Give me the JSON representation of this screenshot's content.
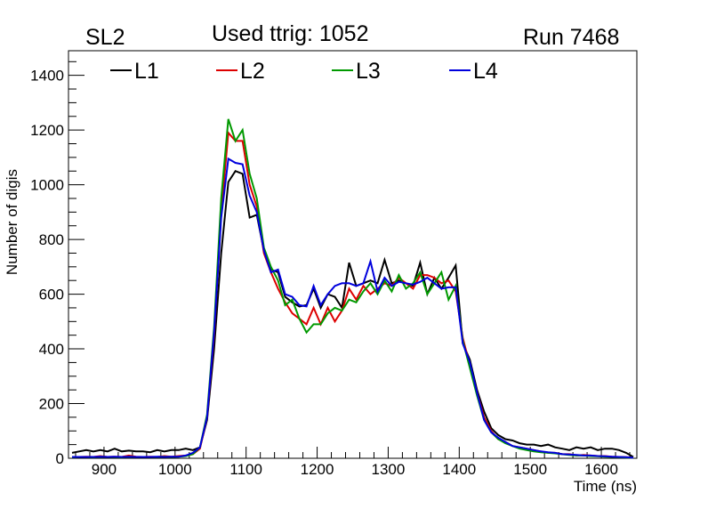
{
  "header": {
    "left": "SL2",
    "center": "Used ttrig: 1052",
    "right": "Run 7468"
  },
  "chart_data": {
    "type": "line",
    "title": "Used ttrig: 1052",
    "xlabel": "Time (ns)",
    "ylabel": "Number of digis",
    "xlim": [
      850,
      1650
    ],
    "ylim": [
      0,
      1490
    ],
    "xticks": [
      900,
      1000,
      1100,
      1200,
      1300,
      1400,
      1500,
      1600
    ],
    "yticks": [
      0,
      200,
      400,
      600,
      800,
      1000,
      1200,
      1400
    ],
    "legend_position": "top",
    "x": [
      855,
      865,
      875,
      885,
      895,
      905,
      915,
      925,
      935,
      945,
      955,
      965,
      975,
      985,
      995,
      1005,
      1015,
      1025,
      1035,
      1045,
      1055,
      1065,
      1075,
      1085,
      1095,
      1105,
      1115,
      1125,
      1135,
      1145,
      1155,
      1165,
      1175,
      1185,
      1195,
      1205,
      1215,
      1225,
      1235,
      1245,
      1255,
      1265,
      1275,
      1285,
      1295,
      1305,
      1315,
      1325,
      1335,
      1345,
      1355,
      1365,
      1375,
      1385,
      1395,
      1405,
      1415,
      1425,
      1435,
      1445,
      1455,
      1465,
      1475,
      1485,
      1495,
      1505,
      1515,
      1525,
      1535,
      1545,
      1555,
      1565,
      1575,
      1585,
      1595,
      1605,
      1615,
      1625,
      1635,
      1645
    ],
    "series": [
      {
        "name": "L1",
        "color": "#000000",
        "values": [
          20,
          25,
          30,
          25,
          30,
          25,
          35,
          25,
          28,
          25,
          25,
          22,
          30,
          25,
          30,
          30,
          35,
          30,
          40,
          140,
          400,
          750,
          1010,
          1050,
          1040,
          880,
          890,
          760,
          690,
          680,
          590,
          570,
          555,
          560,
          620,
          550,
          600,
          590,
          550,
          715,
          630,
          640,
          650,
          640,
          725,
          640,
          650,
          640,
          630,
          715,
          600,
          660,
          620,
          660,
          705,
          420,
          360,
          250,
          170,
          110,
          85,
          70,
          65,
          55,
          50,
          50,
          45,
          50,
          40,
          35,
          30,
          40,
          35,
          40,
          30,
          35,
          35,
          30,
          20,
          5
        ]
      },
      {
        "name": "L2",
        "color": "#dd0000",
        "values": [
          5,
          5,
          6,
          5,
          8,
          5,
          6,
          5,
          10,
          6,
          5,
          6,
          5,
          8,
          6,
          8,
          10,
          15,
          35,
          150,
          450,
          900,
          1190,
          1160,
          1160,
          1000,
          920,
          750,
          680,
          620,
          570,
          530,
          510,
          490,
          550,
          490,
          550,
          500,
          540,
          620,
          580,
          630,
          600,
          620,
          640,
          630,
          660,
          640,
          620,
          670,
          670,
          660,
          640,
          650,
          610,
          440,
          340,
          240,
          150,
          100,
          70,
          60,
          45,
          40,
          35,
          30,
          25,
          20,
          20,
          15,
          15,
          10,
          12,
          10,
          8,
          8,
          6,
          5,
          4,
          2
        ]
      },
      {
        "name": "L3",
        "color": "#009900",
        "values": [
          4,
          5,
          5,
          4,
          6,
          5,
          5,
          4,
          6,
          5,
          5,
          5,
          5,
          6,
          5,
          6,
          8,
          15,
          40,
          160,
          480,
          950,
          1240,
          1160,
          1200,
          1040,
          950,
          770,
          700,
          650,
          560,
          580,
          510,
          460,
          490,
          490,
          530,
          550,
          540,
          580,
          570,
          610,
          640,
          600,
          650,
          610,
          670,
          620,
          640,
          680,
          600,
          640,
          680,
          580,
          630,
          430,
          330,
          230,
          140,
          95,
          70,
          55,
          45,
          35,
          30,
          25,
          22,
          20,
          18,
          15,
          12,
          10,
          10,
          8,
          7,
          6,
          5,
          4,
          3,
          2
        ]
      },
      {
        "name": "L4",
        "color": "#0000dd",
        "values": [
          5,
          5,
          5,
          5,
          6,
          5,
          6,
          5,
          6,
          5,
          5,
          5,
          6,
          5,
          6,
          6,
          10,
          20,
          40,
          150,
          460,
          880,
          1095,
          1080,
          1075,
          960,
          900,
          760,
          680,
          690,
          600,
          590,
          560,
          555,
          630,
          560,
          600,
          630,
          640,
          640,
          630,
          640,
          720,
          610,
          660,
          630,
          645,
          640,
          635,
          645,
          660,
          640,
          620,
          625,
          625,
          420,
          350,
          240,
          140,
          95,
          75,
          60,
          45,
          40,
          35,
          30,
          25,
          22,
          20,
          15,
          14,
          12,
          10,
          10,
          8,
          7,
          6,
          5,
          4,
          2
        ]
      }
    ]
  }
}
